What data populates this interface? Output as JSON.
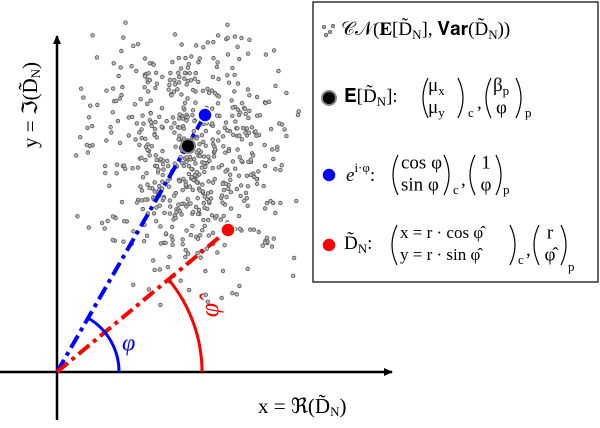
{
  "axes": {
    "x_label": {
      "pre": "x = ℜ(D̃",
      "sub": "N",
      "post": ")"
    },
    "y_label": {
      "pre": "y = ℑ(D̃",
      "sub": "N",
      "post": ")"
    }
  },
  "angles": {
    "phi": "φ",
    "phi_hat": "φ̂"
  },
  "legend": {
    "distribution": {
      "pre": "𝒞𝒩(𝐄[D̃",
      "sub": "N",
      "mid": "], 𝐕𝐚𝐫(D̃",
      "sub2": "N",
      "post": "))"
    },
    "mean": {
      "pre": "𝐄[D̃",
      "sub": "N",
      "post": "]:",
      "cartesian": [
        {
          "base": "μ",
          "sub": "x"
        },
        {
          "base": "μ",
          "sub": "y"
        }
      ],
      "cartesian_tag": "c",
      "comma": ",",
      "polar": [
        {
          "base": "β",
          "sub": "p"
        },
        {
          "base": "φ"
        }
      ],
      "polar_tag": "p"
    },
    "phase": {
      "pre": "e",
      "sup": "i·φ",
      "post": ":",
      "cartesian": [
        "cos φ",
        "sin φ"
      ],
      "cartesian_tag": "c",
      "comma": ",",
      "polar": [
        "1",
        "φ"
      ],
      "polar_tag": "p"
    },
    "sample": {
      "pre": "D̃",
      "sub": "N",
      "post": ":",
      "cartesian": [
        "x = r · cos φ̂",
        "y = r · sin φ̂"
      ],
      "cartesian_tag": "c",
      "comma": ",",
      "polar": [
        "r",
        "φ̂"
      ],
      "polar_tag": "p"
    }
  }
}
